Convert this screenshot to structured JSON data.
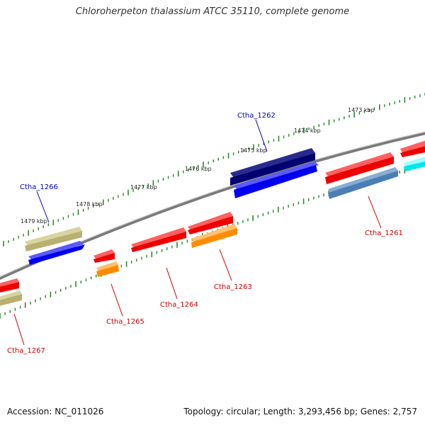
{
  "title": "Chloroherpeton thalassium ATCC 35110, complete genome",
  "footer": {
    "accession": "Accession: NC_011026",
    "summary": "Topology: circular; Length: 3,293,456 bp; Genes: 2,757"
  },
  "kbp_labels": [
    "1473 kbp",
    "1474 kbp",
    "1475 kbp",
    "1476 kbp",
    "1477 kbp",
    "1478 kbp",
    "1479 kbp"
  ],
  "gene_labels": {
    "top": [
      "Ctha_1262",
      "Ctha_1266"
    ],
    "bottom": [
      "Ctha_1261",
      "Ctha_1263",
      "Ctha_1264",
      "Ctha_1265",
      "Ctha_1267"
    ]
  },
  "colors": {
    "red": "#ee0000",
    "blue": "#0000ee",
    "navy": "#00006e",
    "khaki": "#b8b070",
    "orange": "#ff8c00",
    "steelblue": "#4a7fb5",
    "cyan": "#00e5ee",
    "backbone": "#808080",
    "ticks": "#2a8a2a"
  }
}
